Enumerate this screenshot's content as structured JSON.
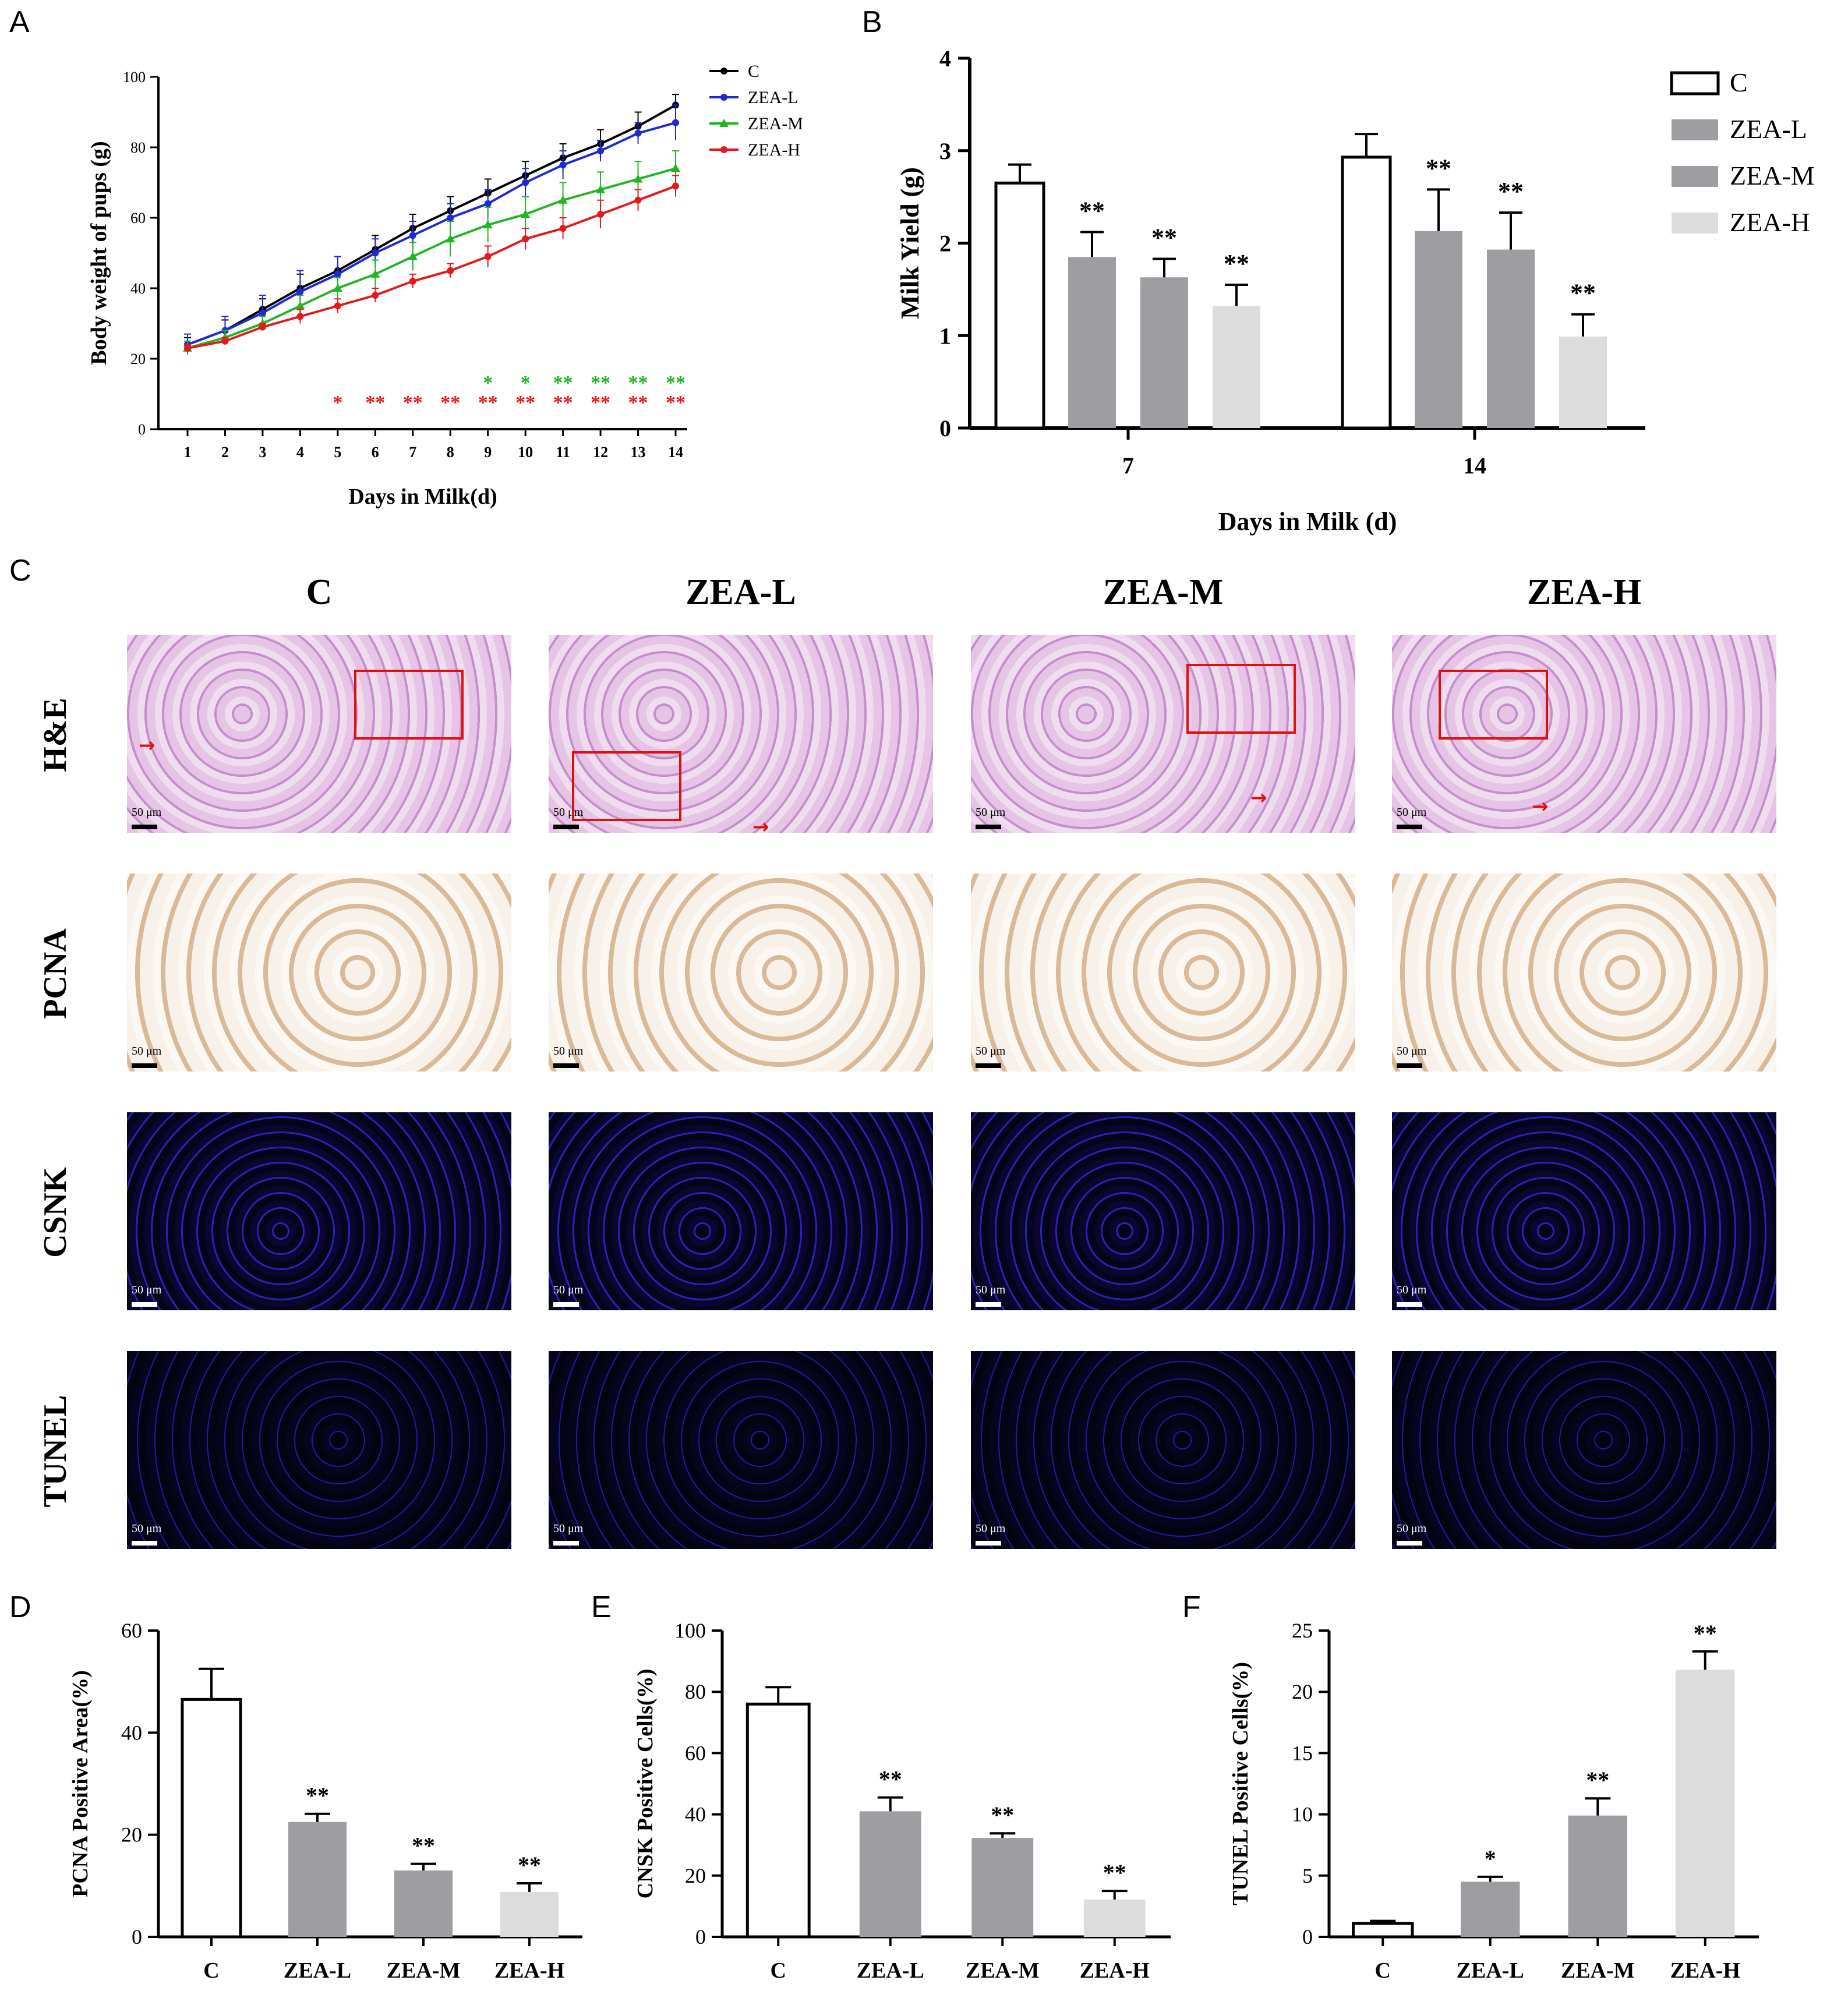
{
  "panels": {
    "A": "A",
    "B": "B",
    "C": "C",
    "D": "D",
    "E": "E",
    "F": "F"
  },
  "colors": {
    "C": "#000000",
    "ZEA-L": "#1f2bd1",
    "ZEA-M": "#22b522",
    "ZEA-H": "#e31a1c",
    "bar_C": "#ffffff",
    "bar_L": "#9e9ea2",
    "bar_M": "#9e9ea2",
    "bar_H": "#dcdcdc"
  },
  "chart_data": [
    {
      "id": "A",
      "type": "line",
      "xlabel": "Days in Milk(d)",
      "ylabel": "Body weight of pups (g)",
      "x": [
        1,
        2,
        3,
        4,
        5,
        6,
        7,
        8,
        9,
        10,
        11,
        12,
        13,
        14
      ],
      "ylim": [
        0,
        100
      ],
      "yticks": [
        0,
        20,
        40,
        60,
        80,
        100
      ],
      "legend_position": "top-right",
      "series": [
        {
          "name": "C",
          "values": [
            24,
            28,
            34,
            40,
            45,
            51,
            57,
            62,
            67,
            72,
            77,
            81,
            86,
            92
          ],
          "err": [
            2,
            3,
            3,
            4,
            4,
            4,
            4,
            4,
            4,
            4,
            4,
            4,
            4,
            3
          ]
        },
        {
          "name": "ZEA-L",
          "values": [
            24,
            28,
            33,
            39,
            44,
            50,
            55,
            60,
            64,
            70,
            75,
            79,
            84,
            87
          ],
          "err": [
            3,
            4,
            5,
            6,
            5,
            4,
            4,
            4,
            4,
            4,
            4,
            3,
            3,
            5
          ]
        },
        {
          "name": "ZEA-M",
          "values": [
            23,
            26,
            30,
            35,
            40,
            44,
            49,
            54,
            58,
            61,
            65,
            68,
            71,
            74
          ],
          "err": [
            2,
            2,
            2,
            3,
            3,
            4,
            4,
            5,
            5,
            5,
            5,
            5,
            5,
            5
          ]
        },
        {
          "name": "ZEA-H",
          "values": [
            23,
            25,
            29,
            32,
            35,
            38,
            42,
            45,
            49,
            54,
            57,
            61,
            65,
            69
          ],
          "err": [
            1,
            1,
            1,
            2,
            2,
            2,
            2,
            2,
            3,
            3,
            3,
            4,
            3,
            3
          ]
        }
      ],
      "annotations": [
        {
          "x": 9,
          "text": "*",
          "row": "green"
        },
        {
          "x": 10,
          "text": "*",
          "row": "green"
        },
        {
          "x": 11,
          "text": "**",
          "row": "green"
        },
        {
          "x": 12,
          "text": "**",
          "row": "green"
        },
        {
          "x": 13,
          "text": "**",
          "row": "green"
        },
        {
          "x": 14,
          "text": "**",
          "row": "green"
        },
        {
          "x": 5,
          "text": "*",
          "row": "red"
        },
        {
          "x": 6,
          "text": "**",
          "row": "red"
        },
        {
          "x": 7,
          "text": "**",
          "row": "red"
        },
        {
          "x": 8,
          "text": "**",
          "row": "red"
        },
        {
          "x": 9,
          "text": "**",
          "row": "red"
        },
        {
          "x": 10,
          "text": "**",
          "row": "red"
        },
        {
          "x": 11,
          "text": "**",
          "row": "red"
        },
        {
          "x": 12,
          "text": "**",
          "row": "red"
        },
        {
          "x": 13,
          "text": "**",
          "row": "red"
        },
        {
          "x": 14,
          "text": "**",
          "row": "red"
        }
      ]
    },
    {
      "id": "B",
      "type": "bar",
      "xlabel": "Days in Milk (d)",
      "ylabel": "Milk Yield (g)",
      "categories": [
        "7",
        "14"
      ],
      "ylim": [
        0,
        4
      ],
      "yticks": [
        0,
        1,
        2,
        3,
        4
      ],
      "legend_position": "top-right",
      "series": [
        {
          "name": "C",
          "values": [
            2.65,
            2.93
          ],
          "err": [
            0.2,
            0.25
          ],
          "sig": [
            "",
            ""
          ]
        },
        {
          "name": "ZEA-L",
          "values": [
            1.85,
            2.13
          ],
          "err": [
            0.27,
            0.45
          ],
          "sig": [
            "**",
            "**"
          ]
        },
        {
          "name": "ZEA-M",
          "values": [
            1.63,
            1.93
          ],
          "err": [
            0.2,
            0.4
          ],
          "sig": [
            "**",
            "**"
          ]
        },
        {
          "name": "ZEA-H",
          "values": [
            1.32,
            0.99
          ],
          "err": [
            0.23,
            0.24
          ],
          "sig": [
            "**",
            "**"
          ]
        }
      ]
    },
    {
      "id": "D",
      "type": "bar",
      "ylabel": "PCNA Positive Area(%)",
      "categories": [
        "C",
        "ZEA-L",
        "ZEA-M",
        "ZEA-H"
      ],
      "values": [
        46.5,
        22.5,
        13.0,
        8.8
      ],
      "err": [
        6.0,
        1.6,
        1.3,
        1.7
      ],
      "sig": [
        "",
        "**",
        "**",
        "**"
      ],
      "ylim": [
        0,
        60
      ],
      "yticks": [
        0,
        20,
        40,
        60
      ]
    },
    {
      "id": "E",
      "type": "bar",
      "ylabel": "CNSK Positive Cells(%)",
      "categories": [
        "C",
        "ZEA-L",
        "ZEA-M",
        "ZEA-H"
      ],
      "values": [
        76.0,
        41.0,
        32.3,
        12.2
      ],
      "err": [
        5.5,
        4.5,
        1.5,
        2.8
      ],
      "sig": [
        "",
        "**",
        "**",
        "**"
      ],
      "ylim": [
        0,
        100
      ],
      "yticks": [
        0,
        20,
        40,
        60,
        80,
        100
      ]
    },
    {
      "id": "F",
      "type": "bar",
      "ylabel": "TUNEL Positive Cells(%)",
      "categories": [
        "C",
        "ZEA-L",
        "ZEA-M",
        "ZEA-H"
      ],
      "values": [
        1.1,
        4.5,
        9.9,
        21.8
      ],
      "err": [
        0.2,
        0.4,
        1.4,
        1.5
      ],
      "sig": [
        "",
        "*",
        "**",
        "**"
      ],
      "ylim": [
        0,
        25
      ],
      "yticks": [
        0,
        5,
        10,
        15,
        20,
        25
      ]
    }
  ],
  "micrographs": {
    "columns": [
      "C",
      "ZEA-L",
      "ZEA-M",
      "ZEA-H"
    ],
    "rows": [
      "H&E",
      "PCNA",
      "CSNK",
      "TUNEL"
    ],
    "scale_label": "50 μm"
  }
}
